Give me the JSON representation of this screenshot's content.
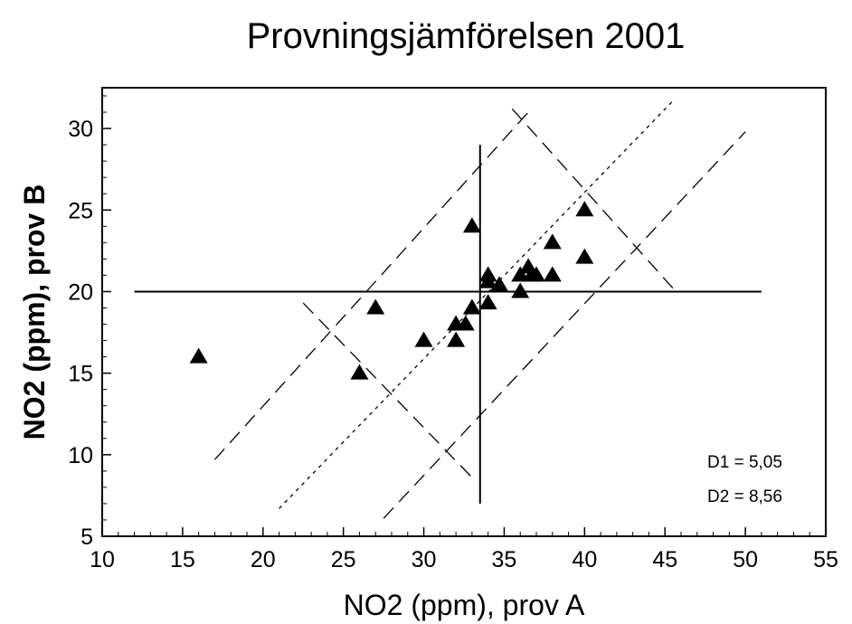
{
  "chart_data": {
    "type": "scatter",
    "title": "Provningsjämförelsen 2001",
    "xlabel": "NO2 (ppm), prov A",
    "ylabel": "NO2 (ppm), prov B",
    "xlim": [
      10,
      55
    ],
    "ylim": [
      5,
      32.5
    ],
    "x_ticks": [
      10,
      15,
      20,
      25,
      30,
      35,
      40,
      45,
      50,
      55
    ],
    "y_ticks": [
      5,
      10,
      15,
      20,
      25,
      30
    ],
    "grid": false,
    "marker": "triangle",
    "points": [
      {
        "x": 16,
        "y": 16
      },
      {
        "x": 26,
        "y": 15
      },
      {
        "x": 27,
        "y": 19
      },
      {
        "x": 30,
        "y": 17
      },
      {
        "x": 32,
        "y": 17
      },
      {
        "x": 32,
        "y": 18
      },
      {
        "x": 32.6,
        "y": 18
      },
      {
        "x": 33,
        "y": 19
      },
      {
        "x": 33,
        "y": 24
      },
      {
        "x": 34,
        "y": 19.3
      },
      {
        "x": 34,
        "y": 20.6
      },
      {
        "x": 34,
        "y": 21
      },
      {
        "x": 34.7,
        "y": 20.4
      },
      {
        "x": 36,
        "y": 20
      },
      {
        "x": 36,
        "y": 21
      },
      {
        "x": 36.5,
        "y": 21.5
      },
      {
        "x": 36.7,
        "y": 21
      },
      {
        "x": 37,
        "y": 21
      },
      {
        "x": 38,
        "y": 21
      },
      {
        "x": 38,
        "y": 23
      },
      {
        "x": 40,
        "y": 22.1
      },
      {
        "x": 40,
        "y": 25
      }
    ],
    "reference_lines": [
      {
        "name": "median-horizontal",
        "style": "solid",
        "x": [
          12,
          51
        ],
        "y": [
          20,
          20
        ]
      },
      {
        "name": "median-vertical",
        "style": "solid",
        "x": [
          33.5,
          33.5
        ],
        "y": [
          7,
          29
        ]
      },
      {
        "name": "identity-line",
        "style": "dotted",
        "x": [
          21,
          45.5
        ],
        "y": [
          6.7,
          31.7
        ]
      },
      {
        "name": "upper-limit-line",
        "style": "dashed",
        "x": [
          17,
          36.5
        ],
        "y": [
          9.7,
          31
        ]
      },
      {
        "name": "lower-limit-line",
        "style": "dashed",
        "x": [
          27.5,
          50
        ],
        "y": [
          6.1,
          29.8
        ]
      },
      {
        "name": "upper-cross-line",
        "style": "dashed",
        "x": [
          35.5,
          45.5
        ],
        "y": [
          31.2,
          20.2
        ]
      },
      {
        "name": "lower-cross-line",
        "style": "dashed",
        "x": [
          22.5,
          33.2
        ],
        "y": [
          19.3,
          8.4
        ]
      }
    ],
    "annotations": [
      "D1  = 5,05",
      "D2  = 8,56"
    ]
  }
}
